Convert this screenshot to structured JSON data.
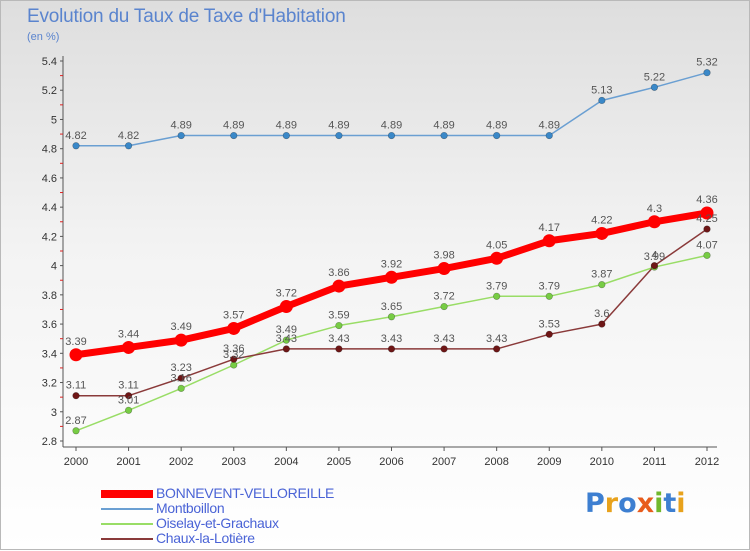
{
  "title": "Evolution du Taux de Taxe d'Habitation",
  "subtitle": "(en %)",
  "brand": {
    "letters": [
      {
        "ch": "P",
        "color": "#3d7fd1"
      },
      {
        "ch": "r",
        "color": "#e8a21c"
      },
      {
        "ch": "o",
        "color": "#3d7fd1"
      },
      {
        "ch": "x",
        "color": "#e85c1c"
      },
      {
        "ch": "i",
        "color": "#71b82c"
      },
      {
        "ch": "t",
        "color": "#3d7fd1"
      },
      {
        "ch": "i",
        "color": "#e8a21c"
      }
    ]
  },
  "chart_data": {
    "type": "line",
    "x": [
      "2000",
      "2001",
      "2002",
      "2003",
      "2004",
      "2005",
      "2006",
      "2007",
      "2008",
      "2009",
      "2010",
      "2011",
      "2012"
    ],
    "ylim": [
      2.8,
      5.4
    ],
    "y_ticks": [
      "2.8",
      "3",
      "3.2",
      "3.4",
      "3.6",
      "3.8",
      "4",
      "4.2",
      "4.4",
      "4.6",
      "4.8",
      "5",
      "5.2",
      "5.4"
    ],
    "grid": false,
    "legend_position": "bottom-left",
    "series": [
      {
        "name": "BONNEVENT-VELLOREILLE",
        "color": "#ff0000",
        "marker_color": "#ff0000",
        "line_width": 7,
        "marker_r": 6.5,
        "values": [
          3.39,
          3.44,
          3.49,
          3.57,
          3.72,
          3.86,
          3.92,
          3.98,
          4.05,
          4.17,
          4.22,
          4.3,
          4.36
        ],
        "labels": [
          "3.39",
          "3.44",
          "3.49",
          "3.57",
          "3.72",
          "3.86",
          "3.92",
          "3.98",
          "4.05",
          "4.17",
          "4.22",
          "4.3",
          "4.36"
        ]
      },
      {
        "name": "Montboillon",
        "color": "#6a9fd2",
        "marker_color": "#3a88c8",
        "line_width": 1.5,
        "marker_r": 3.3,
        "values": [
          4.82,
          4.82,
          4.89,
          4.89,
          4.89,
          4.89,
          4.89,
          4.89,
          4.89,
          4.89,
          5.13,
          5.22,
          5.32
        ],
        "labels": [
          "4.82",
          "4.82",
          "4.89",
          "4.89",
          "4.89",
          "4.89",
          "4.89",
          "4.89",
          "4.89",
          "4.89",
          "5.13",
          "5.22",
          "5.32"
        ]
      },
      {
        "name": "Oiselay-et-Grachaux",
        "color": "#99dd66",
        "marker_color": "#77cc44",
        "line_width": 1.5,
        "marker_r": 3.3,
        "values": [
          2.87,
          3.01,
          3.16,
          3.32,
          3.49,
          3.59,
          3.65,
          3.72,
          3.79,
          3.79,
          3.87,
          3.99,
          4.07
        ],
        "labels": [
          "2.87",
          "3.01",
          "3.16",
          "3.32",
          "3.49",
          "3.59",
          "3.65",
          "3.72",
          "3.79",
          "3.79",
          "3.87",
          "3.99",
          "4.07"
        ]
      },
      {
        "name": "Chaux-la-Lotière",
        "color": "#8a3a3a",
        "marker_color": "#6e1616",
        "line_width": 1.5,
        "marker_r": 3.3,
        "values": [
          3.11,
          3.11,
          3.23,
          3.36,
          3.43,
          3.43,
          3.43,
          3.43,
          3.43,
          3.53,
          3.6,
          4.0,
          4.25
        ],
        "labels": [
          "3.11",
          "3.11",
          "3.23",
          "3.36",
          "3.43",
          "3.43",
          "3.43",
          "3.43",
          "3.43",
          "3.53",
          "3.6",
          "4",
          "4.25"
        ]
      }
    ]
  }
}
